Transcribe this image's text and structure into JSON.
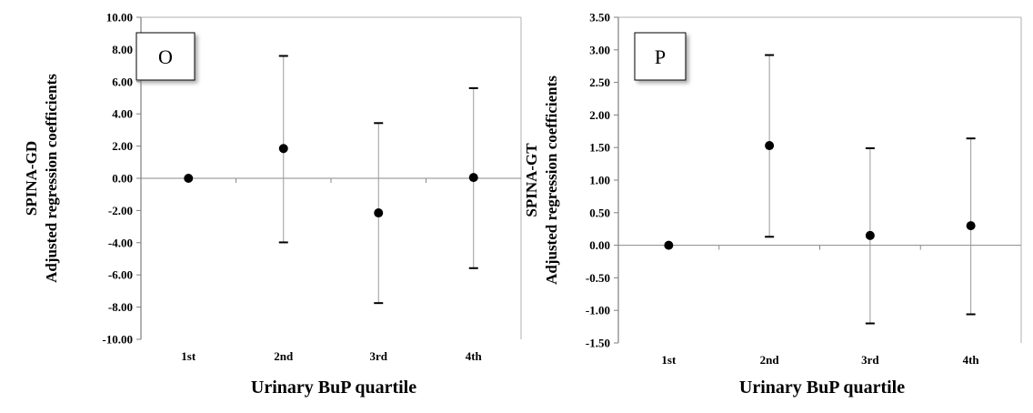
{
  "chart_data": [
    {
      "type": "scatter",
      "panel_label": "O",
      "ylabel_lines": [
        "SPINA-GD",
        "Adjusted regression coefficients"
      ],
      "xlabel": "Urinary BuP quartile",
      "categories": [
        "1st",
        "2nd",
        "3rd",
        "4th"
      ],
      "values": [
        0.0,
        1.85,
        -2.15,
        0.05
      ],
      "lower": [
        null,
        -3.98,
        -7.75,
        -5.58
      ],
      "upper": [
        null,
        7.6,
        3.43,
        5.6
      ],
      "ylim": [
        -10.0,
        10.0
      ],
      "yticks": [
        -10.0,
        -8.0,
        -6.0,
        -4.0,
        -2.0,
        0.0,
        2.0,
        4.0,
        6.0,
        8.0,
        10.0
      ],
      "ytick_labels": [
        "-10.00",
        "-8.00",
        "-6.00",
        "-4.00",
        "-2.00",
        "0.00",
        "2.00",
        "4.00",
        "6.00",
        "8.00",
        "10.00"
      ],
      "grid": false
    },
    {
      "type": "scatter",
      "panel_label": "P",
      "ylabel_lines": [
        "SPINA-GT",
        "Adjusted regression coefficients"
      ],
      "xlabel": "Urinary BuP quartile",
      "categories": [
        "1st",
        "2nd",
        "3rd",
        "4th"
      ],
      "values": [
        0.0,
        1.53,
        0.15,
        0.3
      ],
      "lower": [
        null,
        0.13,
        -1.2,
        -1.06
      ],
      "upper": [
        null,
        2.92,
        1.49,
        1.64
      ],
      "ylim": [
        -1.5,
        3.5
      ],
      "yticks": [
        -1.5,
        -1.0,
        -0.5,
        0.0,
        0.5,
        1.0,
        1.5,
        2.0,
        2.5,
        3.0,
        3.5
      ],
      "ytick_labels": [
        "-1.50",
        "-1.00",
        "-0.50",
        "0.00",
        "0.50",
        "1.00",
        "1.50",
        "2.00",
        "2.50",
        "3.00",
        "3.50"
      ],
      "grid": false
    }
  ]
}
